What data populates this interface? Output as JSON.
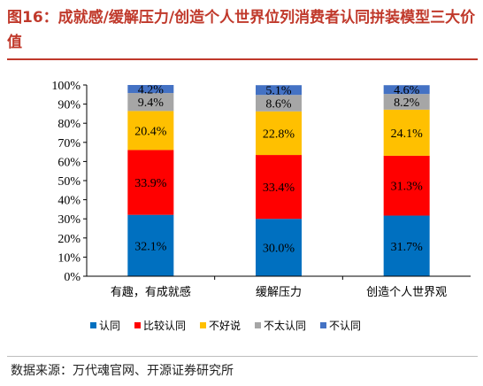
{
  "title": "图16：成就感/缓解压力/创造个人世界位列消费者认同拼装模型三大价值",
  "source": "数据来源：万代魂官网、开源证券研究所",
  "chart_data": {
    "type": "bar",
    "stacked": true,
    "categories": [
      "有趣，有成就感",
      "缓解压力",
      "创造个人世界观"
    ],
    "series": [
      {
        "name": "认同",
        "color": "#0070c0",
        "values": [
          32.1,
          30.0,
          31.7
        ]
      },
      {
        "name": "比较认同",
        "color": "#ff0000",
        "values": [
          33.9,
          33.4,
          31.3
        ]
      },
      {
        "name": "不好说",
        "color": "#ffc000",
        "values": [
          20.4,
          22.8,
          24.1
        ]
      },
      {
        "name": "不太认同",
        "color": "#a6a6a6",
        "values": [
          9.4,
          8.6,
          8.2
        ]
      },
      {
        "name": "不认同",
        "color": "#4472c4",
        "values": [
          4.2,
          5.1,
          4.6
        ]
      }
    ],
    "value_labels": [
      [
        "32.1%",
        "33.9%",
        "20.4%",
        "9.4%",
        "4.2%"
      ],
      [
        "30.0%",
        "33.4%",
        "22.8%",
        "8.6%",
        "5.1%"
      ],
      [
        "31.7%",
        "31.3%",
        "24.1%",
        "8.2%",
        "4.6%"
      ]
    ],
    "yticks": [
      "0%",
      "10%",
      "20%",
      "30%",
      "40%",
      "50%",
      "60%",
      "70%",
      "80%",
      "90%",
      "100%"
    ],
    "ylim": [
      0,
      100
    ],
    "grid": false,
    "legend": "bottom"
  }
}
